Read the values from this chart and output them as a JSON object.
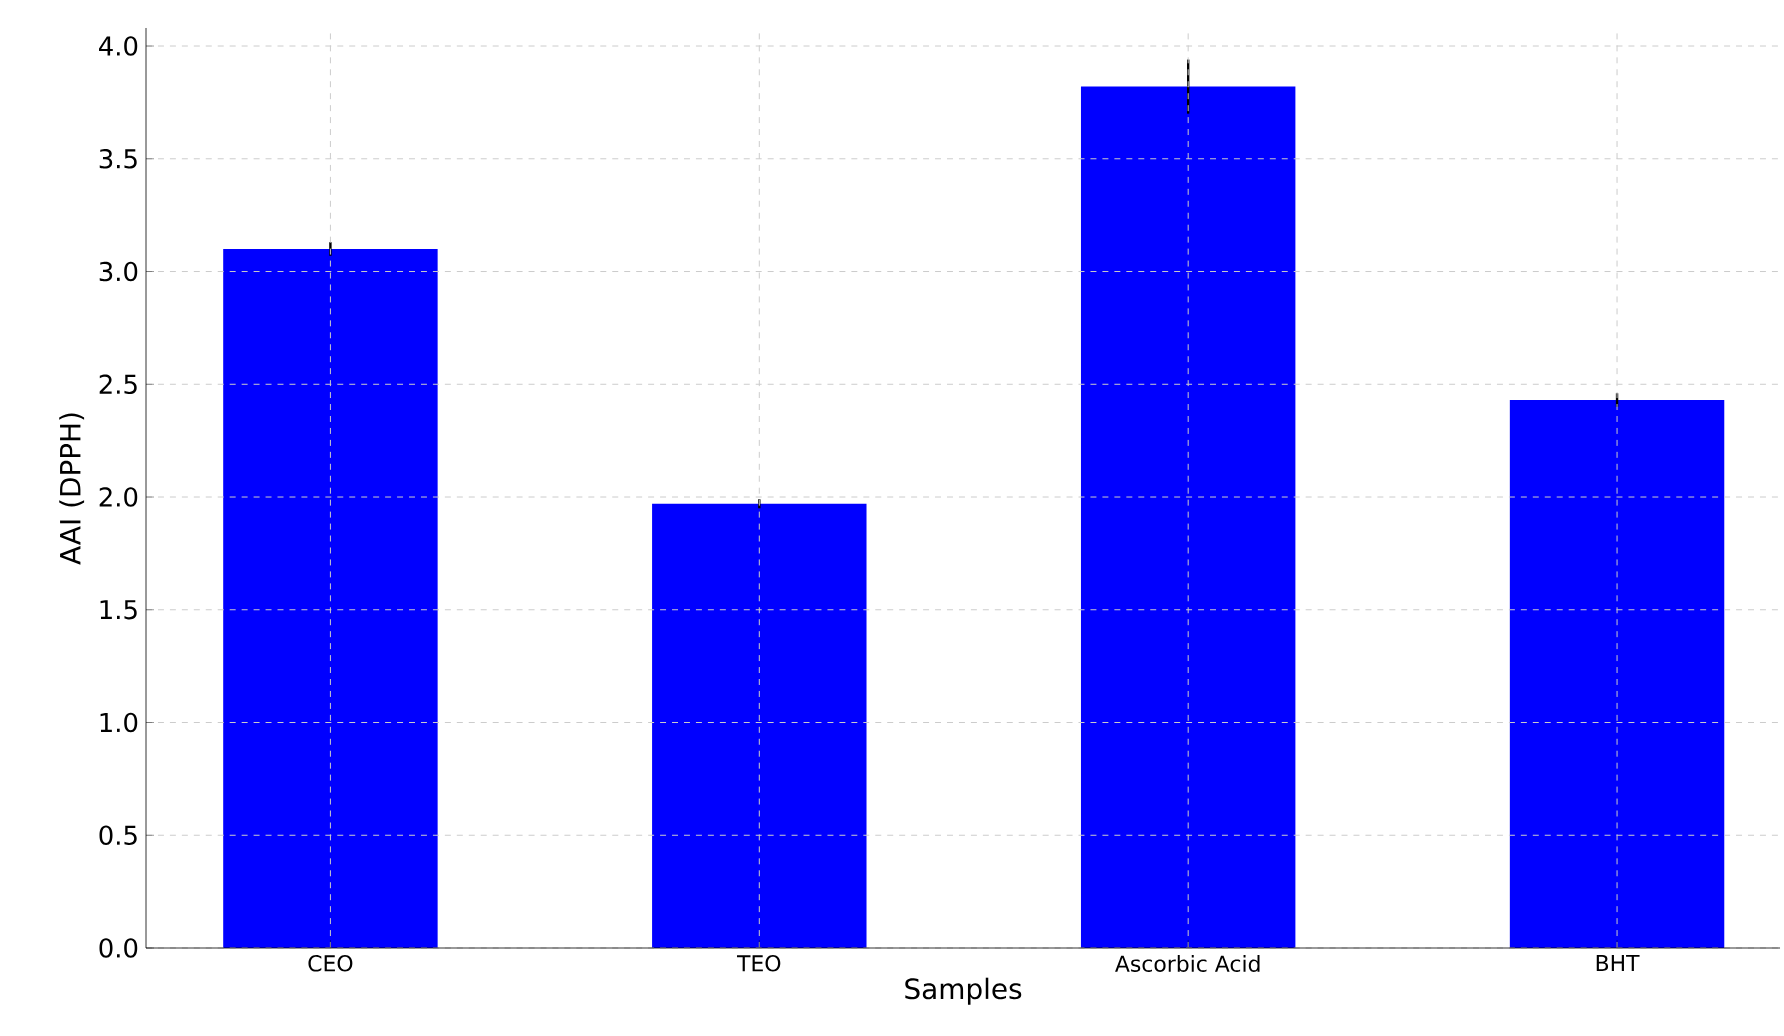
{
  "chart_data": {
    "type": "bar",
    "xlabel": "Samples",
    "ylabel": "AAI (DPPH)",
    "categories": [
      "CEO",
      "TEO",
      "Ascorbic Acid",
      "BHT"
    ],
    "values": [
      3.1,
      1.97,
      3.82,
      2.43
    ],
    "errors": [
      0.03,
      0.02,
      0.12,
      0.03
    ],
    "color": "#0000ff",
    "ylim": [
      0,
      4.08
    ],
    "yticks": [
      {
        "value": 0,
        "label": "0.0"
      },
      0.5,
      {
        "value": 1,
        "label": "1.0"
      },
      1.5,
      {
        "value": 2,
        "label": "2.0"
      },
      2.5,
      {
        "value": 3,
        "label": "3.0"
      },
      3.5,
      {
        "value": 4,
        "label": "4.0"
      }
    ],
    "grid": true
  }
}
